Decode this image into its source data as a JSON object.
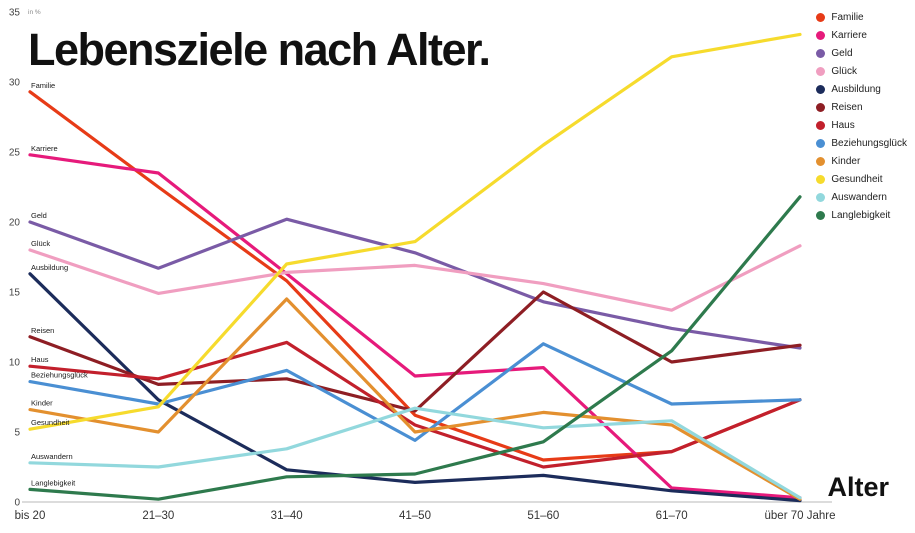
{
  "title": "Lebensziele nach Alter.",
  "x_axis_label": "Alter",
  "chart_data": {
    "type": "line",
    "title": "Lebensziele nach Alter.",
    "xlabel": "Alter",
    "ylabel": "in %",
    "ylim": [
      0,
      35
    ],
    "y_ticks": [
      0,
      5,
      10,
      15,
      20,
      25,
      30,
      35
    ],
    "grid": false,
    "legend_position": "top-right",
    "categories": [
      "bis 20",
      "21–30",
      "31–40",
      "41–50",
      "51–60",
      "61–70",
      "über 70 Jahre"
    ],
    "series": [
      {
        "name": "Familie",
        "color": "#e73b17",
        "values": [
          29.3,
          22.5,
          15.8,
          6.2,
          3.0,
          3.6,
          7.3
        ]
      },
      {
        "name": "Karriere",
        "color": "#e61a7b",
        "values": [
          24.8,
          23.5,
          16.3,
          9.0,
          9.6,
          1.0,
          0.3
        ]
      },
      {
        "name": "Geld",
        "color": "#7a5ba6",
        "values": [
          20.0,
          16.7,
          20.2,
          17.8,
          14.3,
          12.4,
          11.0
        ]
      },
      {
        "name": "Glück",
        "color": "#f09ec0",
        "values": [
          18.0,
          14.9,
          16.4,
          16.9,
          15.6,
          13.7,
          18.3
        ]
      },
      {
        "name": "Ausbildung",
        "color": "#1c2c5b",
        "values": [
          16.3,
          7.3,
          2.3,
          1.4,
          1.9,
          0.8,
          0.1
        ]
      },
      {
        "name": "Reisen",
        "color": "#8e1e24",
        "values": [
          11.8,
          8.4,
          8.8,
          6.5,
          15.0,
          10.0,
          11.2
        ]
      },
      {
        "name": "Haus",
        "color": "#c2202c",
        "values": [
          9.7,
          8.8,
          11.4,
          5.5,
          2.5,
          3.6,
          7.3
        ]
      },
      {
        "name": "Beziehungsglück",
        "color": "#4a8fd3",
        "values": [
          8.6,
          7.0,
          9.4,
          4.4,
          11.3,
          7.0,
          7.3
        ]
      },
      {
        "name": "Kinder",
        "color": "#e3902f",
        "values": [
          6.6,
          5.0,
          14.5,
          5.0,
          6.4,
          5.5,
          0.2
        ]
      },
      {
        "name": "Gesundheit",
        "color": "#f6db2d",
        "values": [
          5.2,
          6.8,
          17.0,
          18.6,
          25.5,
          31.8,
          33.4
        ]
      },
      {
        "name": "Auswandern",
        "color": "#92d8dd",
        "values": [
          2.8,
          2.5,
          3.8,
          6.7,
          5.3,
          5.8,
          0.3
        ]
      },
      {
        "name": "Langlebigkeit",
        "color": "#2e7a4d",
        "values": [
          0.9,
          0.2,
          1.8,
          2.0,
          4.3,
          10.8,
          21.8
        ]
      }
    ]
  }
}
